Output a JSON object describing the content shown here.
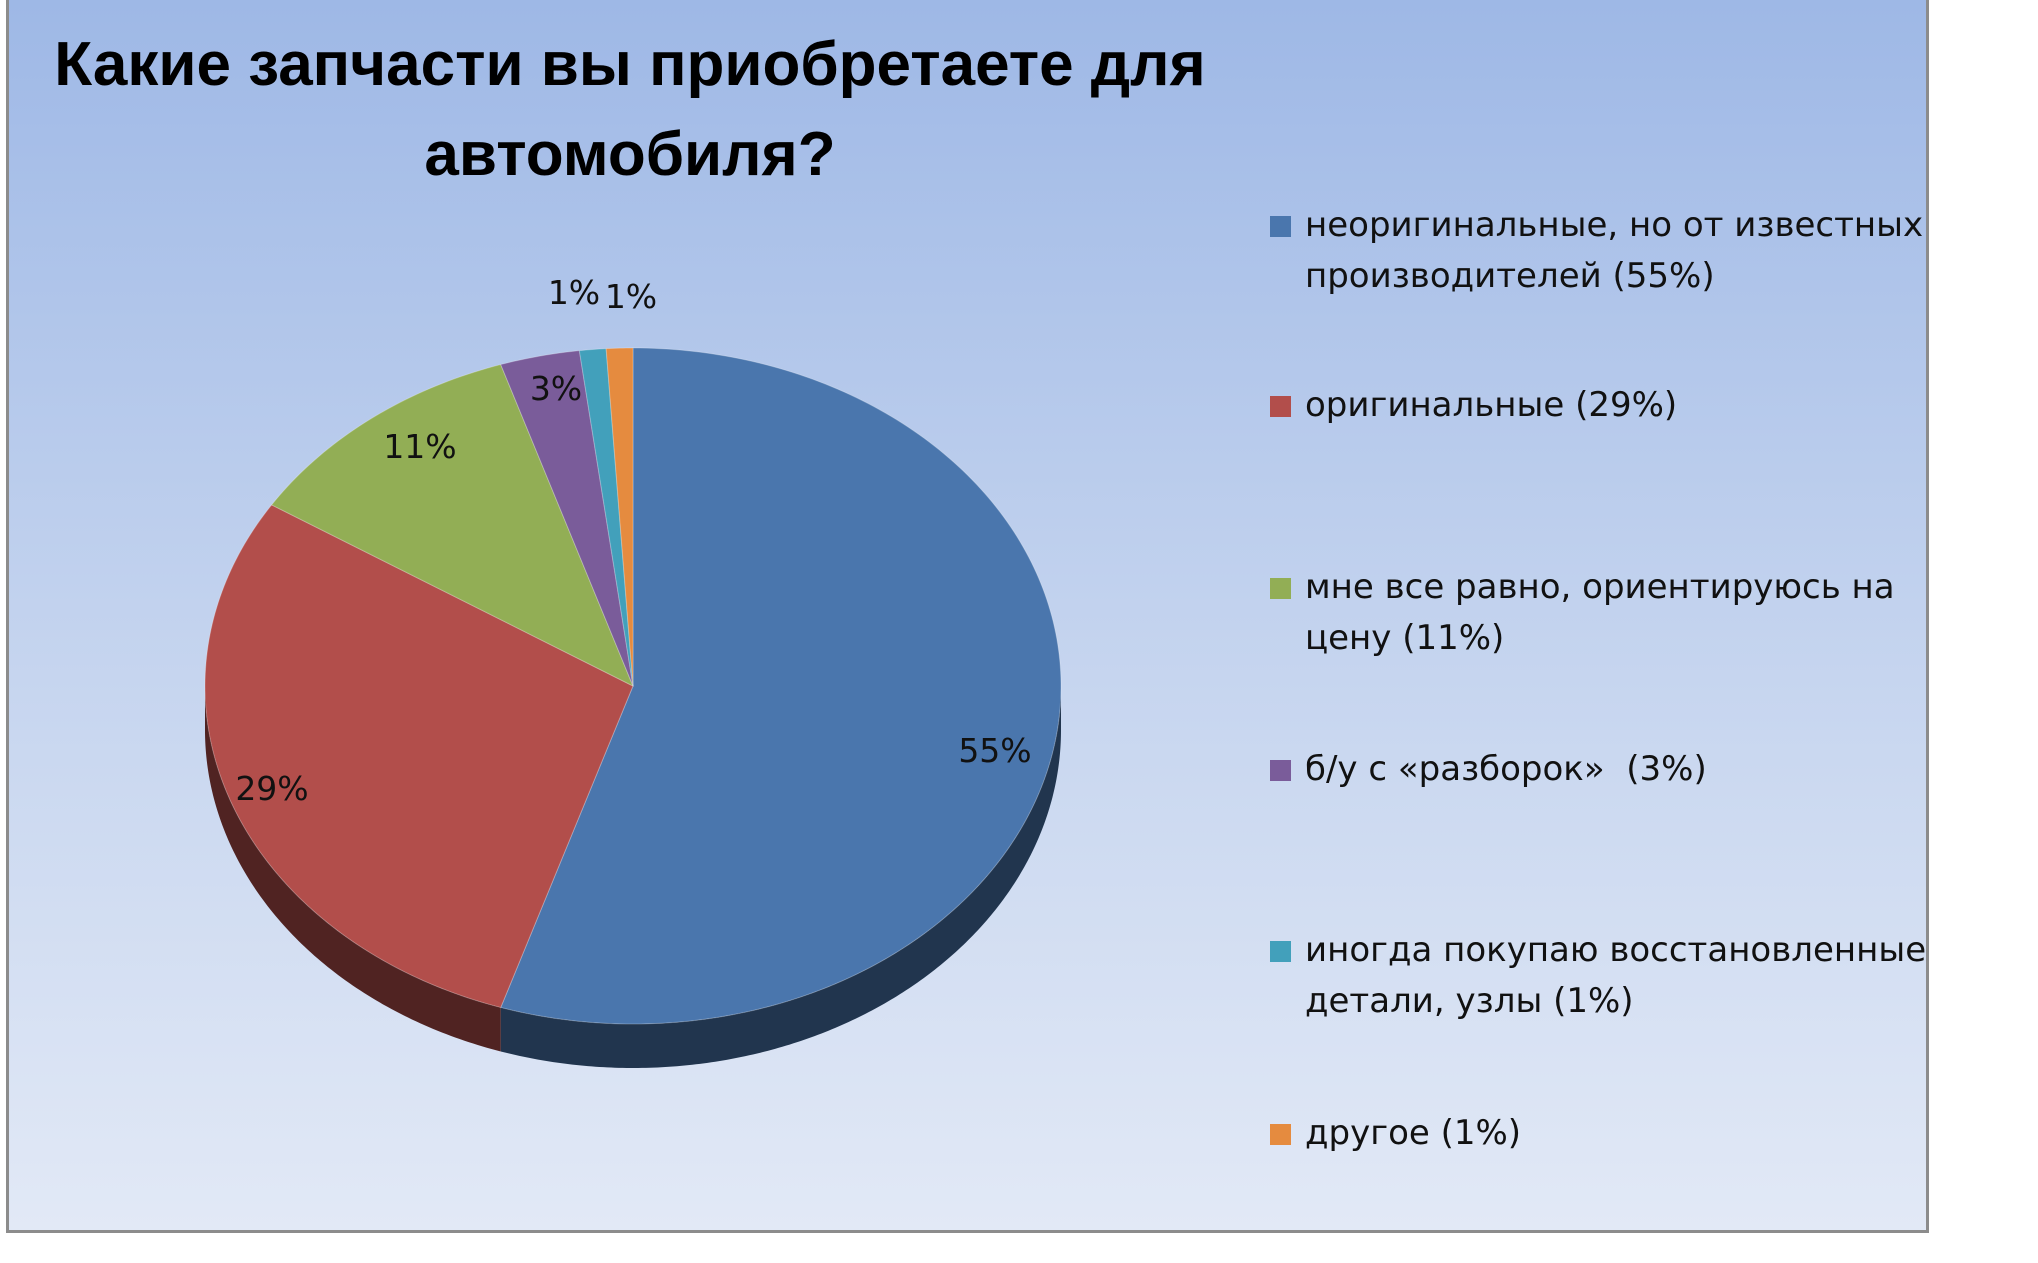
{
  "chart_data": {
    "type": "pie",
    "title": "Какие запчасти вы приобретаете для автомобиля?",
    "legend_position": "right",
    "slices": [
      {
        "label": "неоригинальные, но от известных производителей (55%)",
        "value": 55,
        "data_label": "55%",
        "color": "#4a76ad"
      },
      {
        "label": "оригинальные (29%)",
        "value": 29,
        "data_label": "29%",
        "color": "#b24e4b"
      },
      {
        "label": "мне все равно, ориентируюсь на цену (11%)",
        "value": 11,
        "data_label": "11%",
        "color": "#92ae55"
      },
      {
        "label": "б/у с «разборок»  (3%)",
        "value": 3,
        "data_label": "3%",
        "color": "#7a5c9a"
      },
      {
        "label": "иногда покупаю восстановленные детали, узлы (1%)",
        "value": 1,
        "data_label": "1%",
        "color": "#42a0bb"
      },
      {
        "label": "другое (1%)",
        "value": 1,
        "data_label": "1%",
        "color": "#e58b3f"
      }
    ]
  }
}
